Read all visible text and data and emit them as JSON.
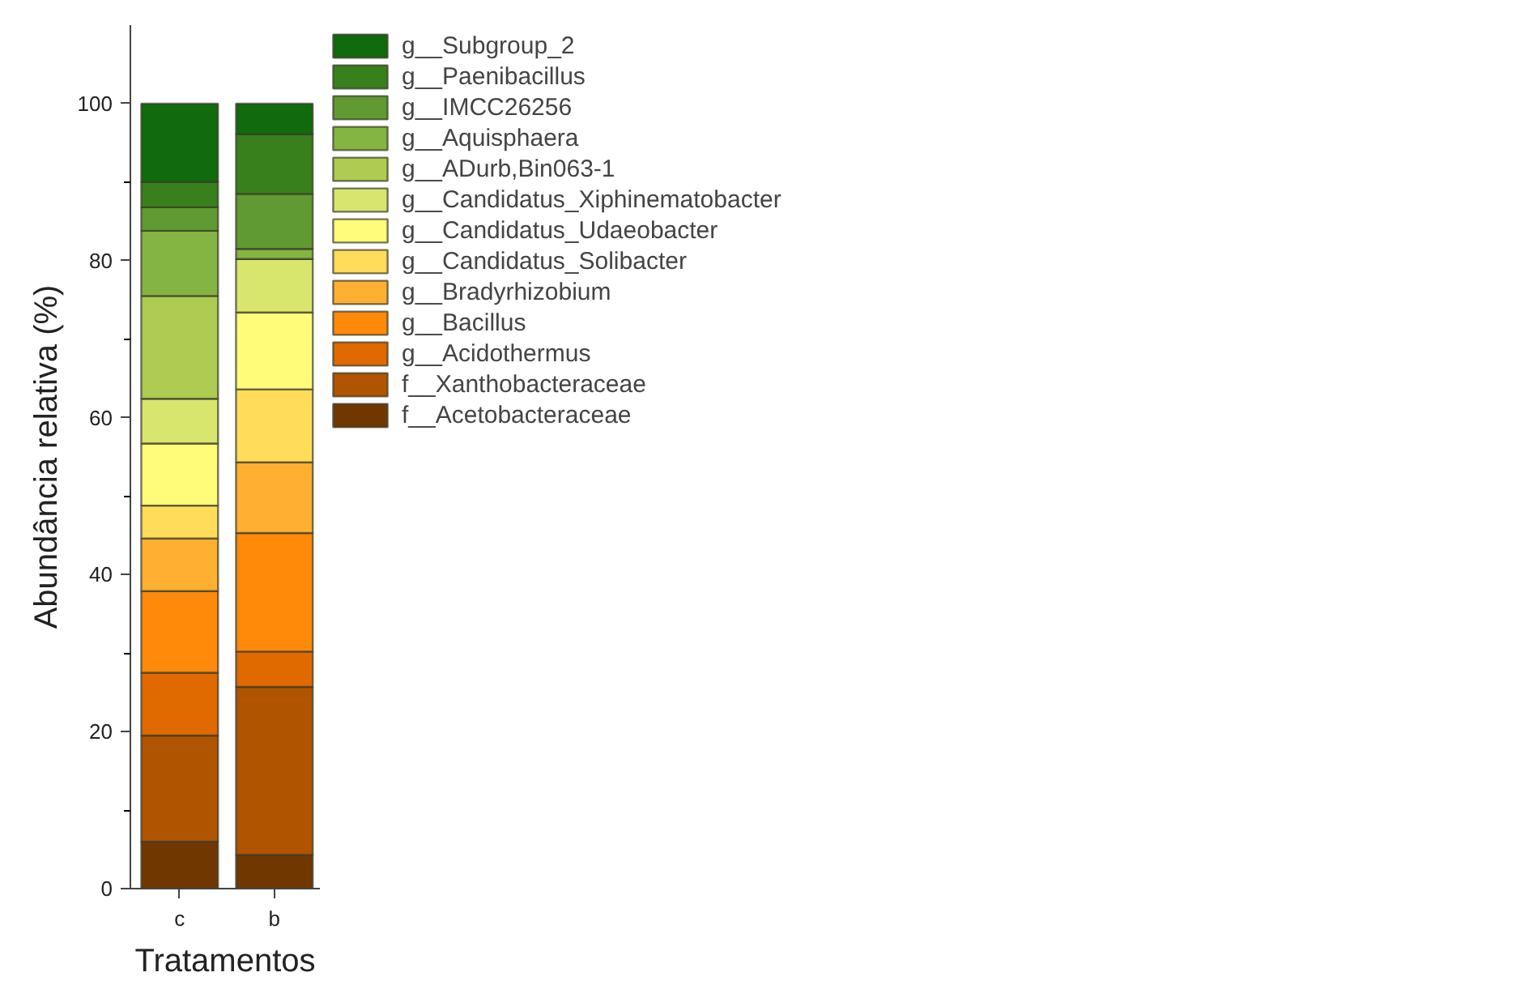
{
  "chart_data": {
    "type": "bar",
    "stacked": true,
    "xlabel": "Tratamentos",
    "ylabel": "Abundância relativa (%)",
    "categories": [
      "c",
      "b"
    ],
    "ylim": [
      0,
      110
    ],
    "yticks": [
      0,
      20,
      40,
      60,
      80,
      100
    ],
    "grid": false,
    "legend": "right",
    "series": [
      {
        "name": "f__Acetobacteraceae",
        "color": "#703800",
        "values": [
          6.0,
          4.3
        ]
      },
      {
        "name": "f__Xanthobacteraceae",
        "color": "#b05400",
        "values": [
          13.5,
          21.4
        ]
      },
      {
        "name": "g__Acidothermus",
        "color": "#e06a00",
        "values": [
          8.0,
          4.5
        ]
      },
      {
        "name": "g__Bacillus",
        "color": "#ff8a0a",
        "values": [
          10.4,
          15.1
        ]
      },
      {
        "name": "g__Bradyrhizobium",
        "color": "#ffb030",
        "values": [
          6.7,
          9.0
        ]
      },
      {
        "name": "g__Candidatus_Solibacter",
        "color": "#ffdc5a",
        "values": [
          4.2,
          9.3
        ]
      },
      {
        "name": "g__Candidatus_Udaeobacter",
        "color": "#fffc79",
        "values": [
          7.9,
          9.8
        ]
      },
      {
        "name": "g__Candidatus_Xiphinematobacter",
        "color": "#d8e66d",
        "values": [
          5.7,
          6.8
        ]
      },
      {
        "name": "g__ADurb,Bin063-1",
        "color": "#aecb52",
        "values": [
          13.1,
          0
        ]
      },
      {
        "name": "g__Aquisphaera",
        "color": "#84b441",
        "values": [
          8.3,
          1.3
        ]
      },
      {
        "name": "g__IMCC26256",
        "color": "#5f9a32",
        "values": [
          3.0,
          7.0
        ]
      },
      {
        "name": "g__Paenibacillus",
        "color": "#38801c",
        "values": [
          3.2,
          7.6
        ]
      },
      {
        "name": "g__Subgroup_2",
        "color": "#116a0c",
        "values": [
          10.0,
          3.9
        ]
      }
    ]
  }
}
